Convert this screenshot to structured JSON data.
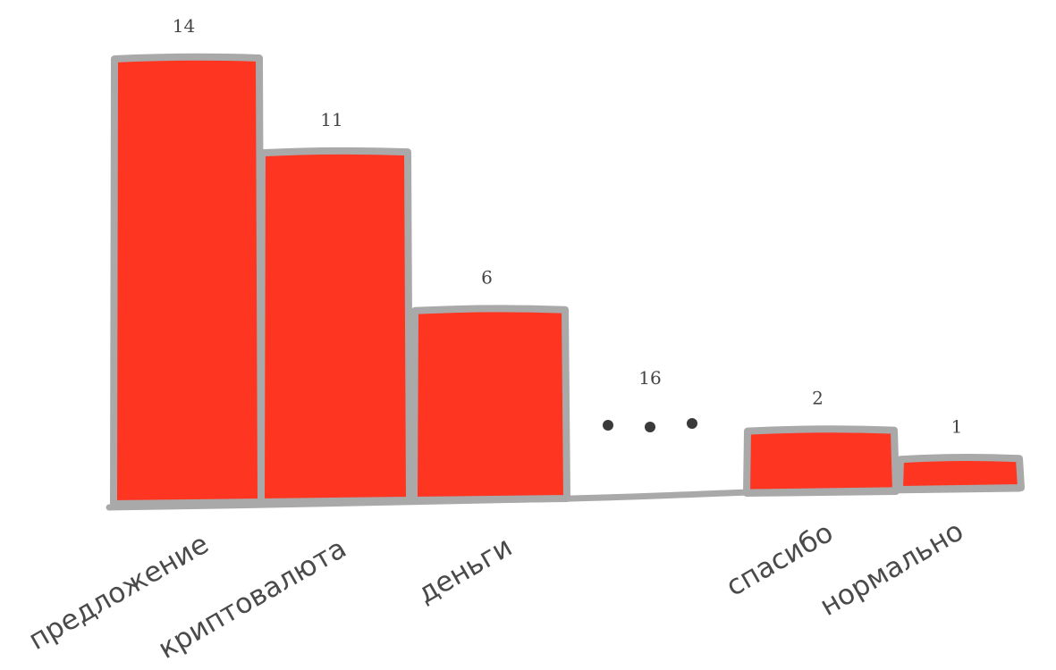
{
  "chart_data": {
    "type": "bar",
    "categories": [
      "предложение",
      "криптовалюта",
      "деньги",
      "спасибо",
      "нормально"
    ],
    "values": [
      14,
      11,
      6,
      2,
      1
    ],
    "omitted": {
      "label": "16",
      "symbol": "• • •"
    },
    "colors": {
      "bar_fill": "#fe3521",
      "bar_outline": "#aaa9a9"
    },
    "title": "",
    "xlabel": "",
    "ylabel": "",
    "ylim": [
      0,
      14
    ],
    "grid": false
  }
}
